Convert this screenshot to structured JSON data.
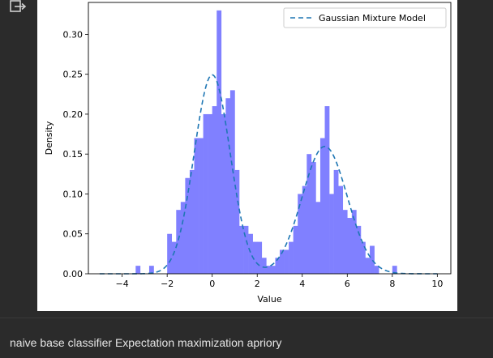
{
  "caption": "naive base classifier Expectation maximization apriory",
  "icons": {
    "output": "output-export-icon"
  },
  "colors": {
    "bars": "#8080ff",
    "curve": "#1f77b4",
    "background": "#2b2b2b",
    "plot_bg": "#ffffff"
  },
  "chart_data": {
    "type": "bar",
    "title": "",
    "xlabel": "Value",
    "ylabel": "Density",
    "xlim": [
      -5.5,
      10.6
    ],
    "ylim": [
      0,
      0.34
    ],
    "xticks": [
      -4,
      -2,
      0,
      2,
      4,
      6,
      8,
      10
    ],
    "xtick_labels": [
      "−4",
      "−2",
      "0",
      "2",
      "4",
      "6",
      "8",
      "10"
    ],
    "yticks": [
      0.0,
      0.05,
      0.1,
      0.15,
      0.2,
      0.25,
      0.3
    ],
    "ytick_labels": [
      "0.00",
      "0.05",
      "0.10",
      "0.15",
      "0.20",
      "0.25",
      "0.30"
    ],
    "grid": false,
    "legend": {
      "position": "top-right",
      "entries": [
        "Gaussian Mixture Model"
      ]
    },
    "histogram": {
      "bin_width": 0.2,
      "bins": [
        {
          "x": -3.4,
          "y": 0.01
        },
        {
          "x": -2.8,
          "y": 0.01
        },
        {
          "x": -2.0,
          "y": 0.05
        },
        {
          "x": -1.8,
          "y": 0.04
        },
        {
          "x": -1.6,
          "y": 0.08
        },
        {
          "x": -1.4,
          "y": 0.09
        },
        {
          "x": -1.2,
          "y": 0.12
        },
        {
          "x": -1.0,
          "y": 0.13
        },
        {
          "x": -0.8,
          "y": 0.17
        },
        {
          "x": -0.6,
          "y": 0.17
        },
        {
          "x": -0.4,
          "y": 0.2
        },
        {
          "x": -0.2,
          "y": 0.2
        },
        {
          "x": 0.0,
          "y": 0.21
        },
        {
          "x": 0.2,
          "y": 0.33
        },
        {
          "x": 0.4,
          "y": 0.2
        },
        {
          "x": 0.6,
          "y": 0.22
        },
        {
          "x": 0.8,
          "y": 0.23
        },
        {
          "x": 1.0,
          "y": 0.13
        },
        {
          "x": 1.2,
          "y": 0.06
        },
        {
          "x": 1.4,
          "y": 0.06
        },
        {
          "x": 1.6,
          "y": 0.05
        },
        {
          "x": 1.8,
          "y": 0.04
        },
        {
          "x": 2.0,
          "y": 0.04
        },
        {
          "x": 2.2,
          "y": 0.02
        },
        {
          "x": 2.4,
          "y": 0.01
        },
        {
          "x": 2.6,
          "y": 0.01
        },
        {
          "x": 2.8,
          "y": 0.02
        },
        {
          "x": 3.0,
          "y": 0.03
        },
        {
          "x": 3.2,
          "y": 0.03
        },
        {
          "x": 3.4,
          "y": 0.04
        },
        {
          "x": 3.6,
          "y": 0.06
        },
        {
          "x": 3.8,
          "y": 0.1
        },
        {
          "x": 4.0,
          "y": 0.11
        },
        {
          "x": 4.2,
          "y": 0.15
        },
        {
          "x": 4.4,
          "y": 0.14
        },
        {
          "x": 4.6,
          "y": 0.09
        },
        {
          "x": 4.8,
          "y": 0.17
        },
        {
          "x": 5.0,
          "y": 0.21
        },
        {
          "x": 5.2,
          "y": 0.1
        },
        {
          "x": 5.4,
          "y": 0.13
        },
        {
          "x": 5.6,
          "y": 0.11
        },
        {
          "x": 5.8,
          "y": 0.08
        },
        {
          "x": 6.0,
          "y": 0.07
        },
        {
          "x": 6.2,
          "y": 0.08
        },
        {
          "x": 6.4,
          "y": 0.06
        },
        {
          "x": 6.6,
          "y": 0.04
        },
        {
          "x": 6.8,
          "y": 0.02
        },
        {
          "x": 7.0,
          "y": 0.035
        },
        {
          "x": 7.2,
          "y": 0.01
        },
        {
          "x": 8.0,
          "y": 0.01
        }
      ]
    },
    "series": [
      {
        "name": "Gaussian Mixture Model",
        "style": "dashed",
        "components": [
          {
            "weight": 0.5,
            "mean": 0.0,
            "std": 0.8
          },
          {
            "weight": 0.4,
            "mean": 5.0,
            "std": 1.0
          }
        ],
        "x_range": [
          -5,
          10
        ]
      }
    ]
  }
}
